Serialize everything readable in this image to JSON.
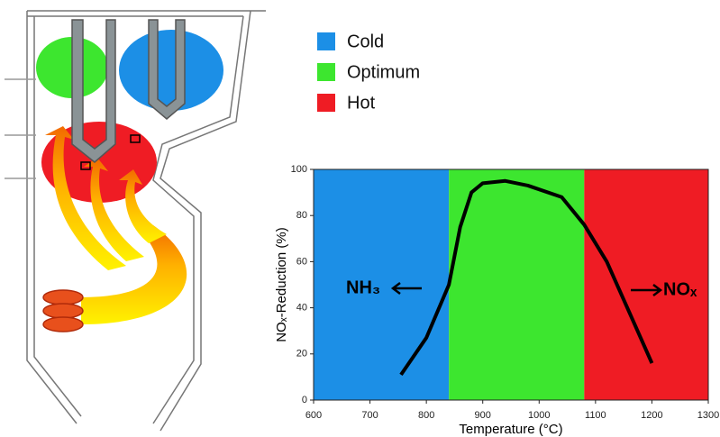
{
  "chart_data": {
    "type": "line",
    "xlabel": "Temperature (°C)",
    "ylabel": "NOₓ-Reduction (%)",
    "regions": [
      {
        "name": "Cold",
        "color": "#1c8fe6",
        "range": [
          600,
          840
        ]
      },
      {
        "name": "Optimum",
        "color": "#3de62f",
        "range": [
          840,
          1080
        ]
      },
      {
        "name": "Hot",
        "color": "#ef1c24",
        "range": [
          1080,
          1300
        ]
      }
    ],
    "x": [
      755,
      800,
      840,
      860,
      880,
      900,
      940,
      980,
      1040,
      1080,
      1120,
      1160,
      1200
    ],
    "values": [
      11,
      27,
      50,
      75,
      90,
      94,
      95,
      93,
      88,
      76,
      60,
      38,
      16
    ],
    "color": "#000000",
    "annotations": [
      "NH₃",
      "NOₓ"
    ],
    "xlim": [
      600,
      1300
    ],
    "xticks": [
      600,
      700,
      800,
      900,
      1000,
      1100,
      1200,
      1300
    ],
    "ylim": [
      0,
      100
    ],
    "yticks": [
      0,
      20,
      40,
      60,
      80,
      100
    ]
  }
}
